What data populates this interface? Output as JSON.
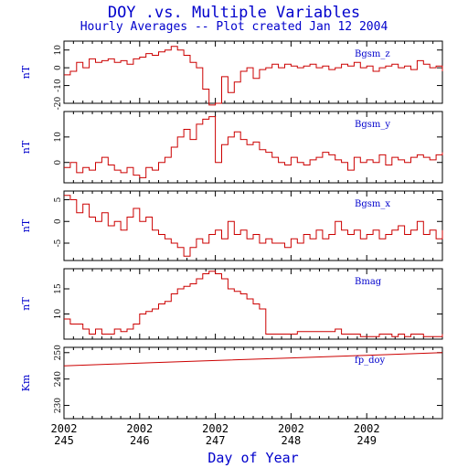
{
  "title": "DOY .vs. Multiple Variables",
  "subtitle": "Hourly Averages -- Plot created Jan 12 2004",
  "colors": {
    "text": "#0000cc",
    "line": "#cc0000",
    "axis": "#000000"
  },
  "chart_data": {
    "type": "line",
    "xlabel": "Day of Year",
    "xlim": [
      245,
      250
    ],
    "xticks": [
      {
        "year": "2002",
        "day": "245",
        "value": 245
      },
      {
        "year": "2002",
        "day": "246",
        "value": 246
      },
      {
        "year": "2002",
        "day": "247",
        "value": 247
      },
      {
        "year": "2002",
        "day": "248",
        "value": 248
      },
      {
        "year": "2002",
        "day": "249",
        "value": 249
      }
    ],
    "panels": [
      {
        "name": "Bgsm_z",
        "ylabel": "nT",
        "ylim": [
          -20,
          15
        ],
        "yticks": [
          -20,
          -10,
          0,
          10
        ],
        "x": [
          245.0,
          245.083,
          245.167,
          245.25,
          245.333,
          245.417,
          245.5,
          245.583,
          245.667,
          245.75,
          245.833,
          245.917,
          246.0,
          246.083,
          246.167,
          246.25,
          246.333,
          246.417,
          246.5,
          246.583,
          246.667,
          246.75,
          246.833,
          246.917,
          247.0,
          247.083,
          247.167,
          247.25,
          247.333,
          247.417,
          247.5,
          247.583,
          247.667,
          247.75,
          247.833,
          247.917,
          248.0,
          248.083,
          248.167,
          248.25,
          248.333,
          248.417,
          248.5,
          248.583,
          248.667,
          248.75,
          248.833,
          248.917,
          249.0,
          249.083,
          249.167,
          249.25,
          249.333,
          249.417,
          249.5,
          249.583,
          249.667,
          249.75,
          249.833,
          249.917,
          250.0
        ],
        "values": [
          -4,
          -2,
          3,
          0,
          5,
          3,
          4,
          5,
          3,
          4,
          2,
          5,
          6,
          8,
          7,
          9,
          10,
          12,
          10,
          7,
          3,
          0,
          -12,
          -21,
          -20,
          -5,
          -14,
          -8,
          -2,
          0,
          -6,
          -1,
          0,
          2,
          0,
          2,
          1,
          0,
          1,
          2,
          0,
          1,
          -1,
          0,
          2,
          1,
          3,
          0,
          1,
          -2,
          0,
          1,
          2,
          0,
          1,
          -1,
          4,
          2,
          0,
          1,
          -2
        ]
      },
      {
        "name": "Bgsm_y",
        "ylabel": "nT",
        "ylim": [
          -8,
          20
        ],
        "yticks": [
          0,
          10
        ],
        "x": [
          245.0,
          245.083,
          245.167,
          245.25,
          245.333,
          245.417,
          245.5,
          245.583,
          245.667,
          245.75,
          245.833,
          245.917,
          246.0,
          246.083,
          246.167,
          246.25,
          246.333,
          246.417,
          246.5,
          246.583,
          246.667,
          246.75,
          246.833,
          246.917,
          247.0,
          247.083,
          247.167,
          247.25,
          247.333,
          247.417,
          247.5,
          247.583,
          247.667,
          247.75,
          247.833,
          247.917,
          248.0,
          248.083,
          248.167,
          248.25,
          248.333,
          248.417,
          248.5,
          248.583,
          248.667,
          248.75,
          248.833,
          248.917,
          249.0,
          249.083,
          249.167,
          249.25,
          249.333,
          249.417,
          249.5,
          249.583,
          249.667,
          249.75,
          249.833,
          249.917,
          250.0
        ],
        "values": [
          -2,
          0,
          -4,
          -2,
          -3,
          0,
          2,
          -1,
          -3,
          -4,
          -2,
          -5,
          -6,
          -2,
          -3,
          0,
          2,
          6,
          10,
          13,
          9,
          15,
          17,
          18,
          0,
          7,
          10,
          12,
          9,
          7,
          8,
          5,
          4,
          2,
          0,
          -1,
          2,
          0,
          -1,
          1,
          2,
          4,
          3,
          1,
          0,
          -3,
          2,
          0,
          1,
          0,
          3,
          -1,
          2,
          1,
          0,
          2,
          3,
          2,
          1,
          3,
          4
        ]
      },
      {
        "name": "Bgsm_x",
        "ylabel": "nT",
        "ylim": [
          -9,
          7
        ],
        "yticks": [
          -5,
          0,
          5
        ],
        "x": [
          245.0,
          245.083,
          245.167,
          245.25,
          245.333,
          245.417,
          245.5,
          245.583,
          245.667,
          245.75,
          245.833,
          245.917,
          246.0,
          246.083,
          246.167,
          246.25,
          246.333,
          246.417,
          246.5,
          246.583,
          246.667,
          246.75,
          246.833,
          246.917,
          247.0,
          247.083,
          247.167,
          247.25,
          247.333,
          247.417,
          247.5,
          247.583,
          247.667,
          247.75,
          247.833,
          247.917,
          248.0,
          248.083,
          248.167,
          248.25,
          248.333,
          248.417,
          248.5,
          248.583,
          248.667,
          248.75,
          248.833,
          248.917,
          249.0,
          249.083,
          249.167,
          249.25,
          249.333,
          249.417,
          249.5,
          249.583,
          249.667,
          249.75,
          249.833,
          249.917,
          250.0
        ],
        "values": [
          6,
          5,
          2,
          4,
          1,
          0,
          2,
          -1,
          0,
          -2,
          1,
          3,
          0,
          1,
          -2,
          -3,
          -4,
          -5,
          -6,
          -8,
          -6,
          -4,
          -5,
          -3,
          -2,
          -4,
          0,
          -3,
          -2,
          -4,
          -3,
          -5,
          -4,
          -5,
          -5,
          -6,
          -4,
          -5,
          -3,
          -4,
          -2,
          -4,
          -3,
          0,
          -2,
          -3,
          -2,
          -4,
          -3,
          -2,
          -4,
          -3,
          -2,
          -1,
          -3,
          -2,
          0,
          -3,
          -2,
          -4,
          -2
        ]
      },
      {
        "name": "Bmag",
        "ylabel": "nT",
        "ylim": [
          5,
          19
        ],
        "yticks": [
          10,
          15
        ],
        "x": [
          245.0,
          245.083,
          245.167,
          245.25,
          245.333,
          245.417,
          245.5,
          245.583,
          245.667,
          245.75,
          245.833,
          245.917,
          246.0,
          246.083,
          246.167,
          246.25,
          246.333,
          246.417,
          246.5,
          246.583,
          246.667,
          246.75,
          246.833,
          246.917,
          247.0,
          247.083,
          247.167,
          247.25,
          247.333,
          247.417,
          247.5,
          247.583,
          247.667,
          247.75,
          247.833,
          247.917,
          248.0,
          248.083,
          248.167,
          248.25,
          248.333,
          248.417,
          248.5,
          248.583,
          248.667,
          248.75,
          248.833,
          248.917,
          249.0,
          249.083,
          249.167,
          249.25,
          249.333,
          249.417,
          249.5,
          249.583,
          249.667,
          249.75,
          249.833,
          249.917,
          250.0
        ],
        "values": [
          9,
          8,
          8,
          7,
          6,
          7,
          6,
          6,
          7,
          6.5,
          7,
          8,
          10,
          10.5,
          11,
          12,
          12.5,
          14,
          15,
          15.5,
          16,
          17,
          18,
          18.5,
          18,
          17,
          15,
          14.5,
          14,
          13,
          12,
          11,
          6,
          6,
          6,
          6,
          6,
          6.5,
          6.5,
          6.5,
          6.5,
          6.5,
          6.5,
          7,
          6,
          6,
          6,
          5.5,
          5.5,
          5.5,
          6,
          6,
          5.5,
          6,
          5.5,
          6,
          6,
          5.5,
          5.5,
          5.5,
          6
        ]
      },
      {
        "name": "fp_doy",
        "ylabel": "Km",
        "ylim": [
          225,
          252
        ],
        "yticks": [
          230,
          240,
          250
        ],
        "x": [
          245.0,
          246.0,
          247.0,
          248.0,
          249.0,
          250.0
        ],
        "values": [
          245.0,
          246.0,
          247.0,
          248.0,
          249.0,
          250.0
        ]
      }
    ]
  }
}
